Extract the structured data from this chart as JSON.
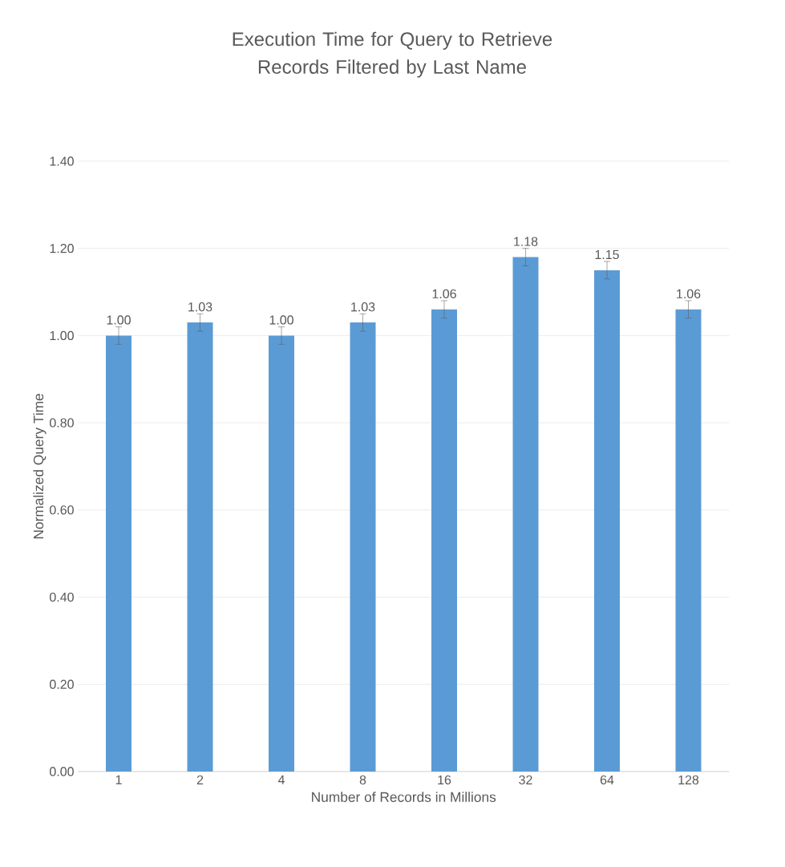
{
  "chart_data": {
    "type": "bar",
    "title": "Execution Time for Query to Retrieve Records Filtered by Last Name",
    "xlabel": "Number of Records in Millions",
    "ylabel": "Normalized Query Time",
    "categories": [
      "1",
      "2",
      "4",
      "8",
      "16",
      "32",
      "64",
      "128"
    ],
    "values": [
      1.0,
      1.03,
      1.0,
      1.03,
      1.06,
      1.18,
      1.15,
      1.06
    ],
    "value_labels": [
      "1.00",
      "1.03",
      "1.00",
      "1.03",
      "1.06",
      "1.18",
      "1.15",
      "1.06"
    ],
    "errors": [
      0.02,
      0.02,
      0.02,
      0.02,
      0.02,
      0.02,
      0.02,
      0.02
    ],
    "color": "#5b9bd5",
    "ylim": [
      0,
      1.4
    ],
    "yticks": [
      {
        "value": 0,
        "label": "0.00"
      },
      {
        "value": 0.2,
        "label": "0.20"
      },
      {
        "value": 0.4,
        "label": "0.40"
      },
      {
        "value": 0.6,
        "label": "0.60"
      },
      {
        "value": 0.8,
        "label": "0.80"
      },
      {
        "value": 1.0,
        "label": "1.00"
      },
      {
        "value": 1.2,
        "label": "1.20"
      },
      {
        "value": 1.4,
        "label": "1.40"
      }
    ],
    "grid": "y"
  }
}
